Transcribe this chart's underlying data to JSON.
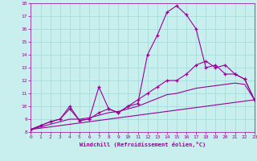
{
  "xlabel": "Windchill (Refroidissement éolien,°C)",
  "bg_color": "#c8eeed",
  "line_color": "#990099",
  "grid_color": "#a0d8d8",
  "ylim": [
    8,
    18
  ],
  "xlim": [
    0,
    23
  ],
  "yticks": [
    8,
    9,
    10,
    11,
    12,
    13,
    14,
    15,
    16,
    17,
    18
  ],
  "xticks": [
    0,
    1,
    2,
    3,
    4,
    5,
    6,
    7,
    8,
    9,
    10,
    11,
    12,
    13,
    14,
    15,
    16,
    17,
    18,
    19,
    20,
    21,
    22,
    23
  ],
  "line1_x": [
    0,
    1,
    2,
    3,
    4,
    5,
    6,
    7,
    8,
    9,
    10,
    11,
    12,
    13,
    14,
    15,
    16,
    17,
    18,
    19,
    20,
    21,
    22,
    23
  ],
  "line1_y": [
    8.2,
    8.5,
    8.8,
    9.0,
    10.0,
    8.9,
    9.0,
    11.5,
    9.8,
    9.5,
    10.0,
    10.2,
    14.0,
    15.5,
    17.3,
    17.8,
    17.1,
    16.0,
    13.0,
    13.2,
    12.5,
    12.5,
    12.1,
    10.5
  ],
  "line2_x": [
    0,
    1,
    2,
    3,
    4,
    5,
    6,
    7,
    8,
    9,
    10,
    11,
    12,
    13,
    14,
    15,
    16,
    17,
    18,
    19,
    20,
    21,
    22,
    23
  ],
  "line2_y": [
    8.2,
    8.5,
    8.8,
    9.0,
    9.8,
    8.9,
    9.0,
    9.5,
    9.8,
    9.5,
    10.0,
    10.5,
    11.0,
    11.5,
    12.0,
    12.0,
    12.5,
    13.2,
    13.5,
    13.0,
    13.2,
    12.5,
    12.1,
    10.5
  ],
  "line3_x": [
    0,
    1,
    2,
    3,
    4,
    5,
    6,
    7,
    8,
    9,
    10,
    11,
    12,
    13,
    14,
    15,
    16,
    17,
    18,
    19,
    20,
    21,
    22,
    23
  ],
  "line3_y": [
    8.2,
    8.4,
    8.6,
    8.8,
    9.0,
    9.0,
    9.1,
    9.3,
    9.5,
    9.6,
    9.8,
    10.0,
    10.3,
    10.6,
    10.9,
    11.0,
    11.2,
    11.4,
    11.5,
    11.6,
    11.7,
    11.8,
    11.7,
    10.5
  ],
  "line4_x": [
    0,
    23
  ],
  "line4_y": [
    8.2,
    10.5
  ]
}
